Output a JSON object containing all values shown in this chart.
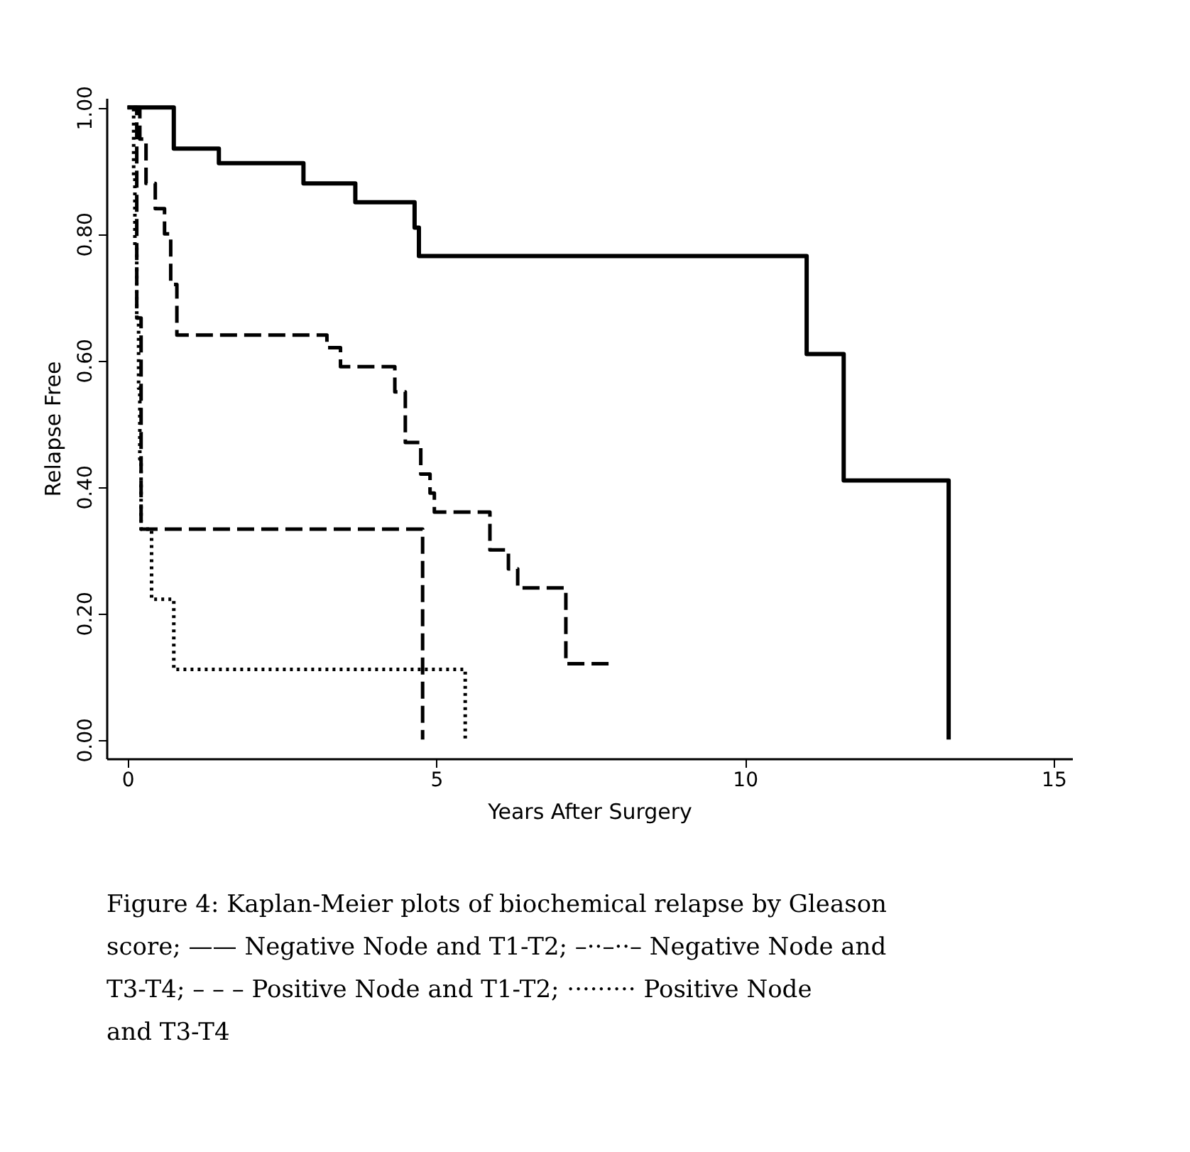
{
  "chart_data": {
    "type": "step",
    "xlabel": "Years After Surgery",
    "ylabel": "Relapse Free",
    "xlim": [
      -0.34,
      15.3
    ],
    "xticks": [
      0,
      5,
      10,
      15
    ],
    "ylim": [
      -0.03,
      1.015
    ],
    "yticks": [
      {
        "value": 0,
        "label": "0.00"
      },
      {
        "value": 0.2,
        "label": "0.20"
      },
      {
        "value": 0.4,
        "label": "0.40"
      },
      {
        "value": 0.6,
        "label": "0.60"
      },
      {
        "value": 0.8,
        "label": "0.80"
      },
      {
        "value": 1,
        "label": "1.00"
      }
    ],
    "grid": false,
    "marker": "none",
    "series": [
      {
        "color": "#000000",
        "line_style": "solid",
        "x": [
          0,
          0.75,
          1.48,
          2.85,
          3.69,
          4.65,
          4.72,
          11.0,
          11.6,
          13.3,
          13.3
        ],
        "values": [
          1.0,
          0.935,
          0.912,
          0.88,
          0.85,
          0.81,
          0.765,
          0.61,
          0.41,
          0.0,
          0.0
        ]
      },
      {
        "color": "#000000",
        "line_style": "dashed",
        "x": [
          0.1,
          0.2,
          0.3,
          0.45,
          0.6,
          0.7,
          0.8,
          3.23,
          3.45,
          4.33,
          4.5,
          4.75,
          4.9,
          4.97,
          5.87,
          6.17,
          6.32,
          7.1,
          7.82
        ],
        "values": [
          1.0,
          0.95,
          0.88,
          0.84,
          0.8,
          0.72,
          0.64,
          0.62,
          0.59,
          0.55,
          0.47,
          0.42,
          0.39,
          0.36,
          0.3,
          0.27,
          0.24,
          0.12,
          0.12
        ]
      },
      {
        "color": "#000000",
        "line_style": "dashed",
        "x": [
          0,
          0.15,
          0.22,
          4.78,
          4.78
        ],
        "values": [
          1.0,
          0.667,
          0.333,
          0.0,
          0.0
        ]
      },
      {
        "color": "#000000",
        "line_style": "dotted",
        "x": [
          0,
          0.1,
          0.12,
          0.15,
          0.18,
          0.2,
          0.22,
          0.39,
          0.75,
          5.47,
          5.47
        ],
        "values": [
          1.0,
          0.889,
          0.778,
          0.667,
          0.556,
          0.444,
          0.333,
          0.222,
          0.111,
          0.0,
          0.0
        ]
      }
    ],
    "annotations": [
      "Figure 4: Kaplan-Meier plots of biochemical relapse by Gleason score; —— Negative Node and T1-T2; –··–··– Negative Node and T3-T4; – – – Positive Node and T1-T2; ········· Positive Node and T3-T4"
    ]
  }
}
